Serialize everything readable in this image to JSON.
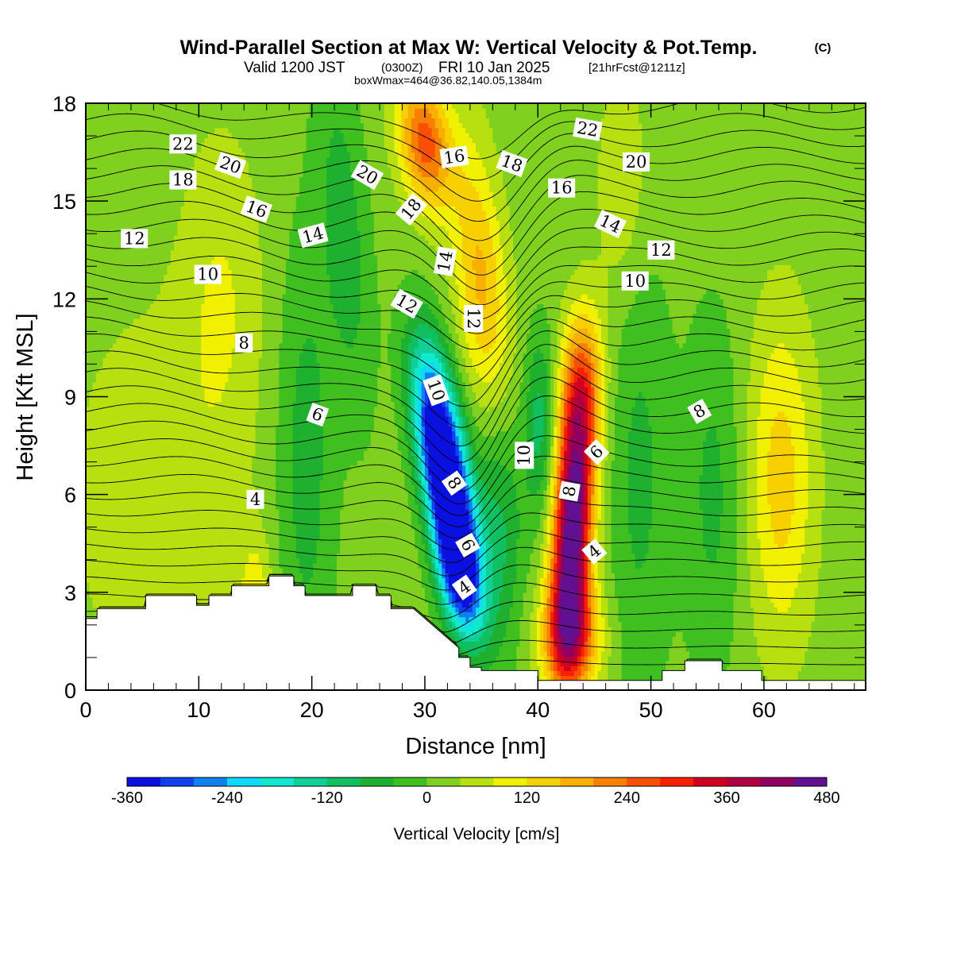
{
  "header": {
    "title": "Wind-Parallel Section at Max W: Vertical Velocity & Pot.Temp.",
    "title_mark": "(C)",
    "valid_prefix": "Valid 1200 JST",
    "valid_utc": "(0300Z)",
    "valid_date": "FRI 10 Jan 2025",
    "forecast_info": "[21hrFcst@1211z]",
    "box_info": "boxWmax=464@36.82,140.05,1384m"
  },
  "colorbar": {
    "title": "Vertical Velocity [cm/s]",
    "tick_labels": [
      "-360",
      "-240",
      "-120",
      "0",
      "120",
      "240",
      "360",
      "480"
    ],
    "levels": [
      -360,
      -320,
      -280,
      -240,
      -200,
      -160,
      -120,
      -80,
      -40,
      0,
      40,
      80,
      120,
      160,
      200,
      240,
      280,
      320,
      360,
      400,
      440,
      480
    ],
    "colors": [
      "#0a10e0",
      "#1040f0",
      "#1080f0",
      "#10d8f8",
      "#10e8d0",
      "#10d098",
      "#10c060",
      "#20b030",
      "#40c020",
      "#80d020",
      "#b8e010",
      "#f0f000",
      "#f8d000",
      "#f8b000",
      "#f88000",
      "#f85000",
      "#f82000",
      "#d00020",
      "#b00040",
      "#900060",
      "#601090"
    ]
  },
  "chart_data": {
    "type": "heatmap",
    "xlabel": "Distance [nm]",
    "ylabel": "Height [Kft MSL]",
    "xlim": [
      0,
      69
    ],
    "ylim": [
      0,
      18
    ],
    "x_ticks": [
      0,
      10,
      20,
      30,
      40,
      50,
      60
    ],
    "y_ticks": [
      0,
      3,
      6,
      9,
      12,
      15,
      18
    ],
    "field": "Vertical Velocity [cm/s]",
    "background_value": 20,
    "features": [
      {
        "x": 32.3,
        "y": 5.6,
        "sx": 1.4,
        "sy": 2.2,
        "value": -400,
        "tilt": -0.45
      },
      {
        "x": 31.0,
        "y": 8.4,
        "sx": 1.5,
        "sy": 2.0,
        "value": -240,
        "tilt": -0.4
      },
      {
        "x": 33.0,
        "y": 3.5,
        "sx": 1.3,
        "sy": 1.3,
        "value": -220,
        "tilt": -0.3
      },
      {
        "x": 43.0,
        "y": 4.6,
        "sx": 1.2,
        "sy": 2.6,
        "value": 470,
        "tilt": 0.12
      },
      {
        "x": 43.8,
        "y": 9.0,
        "sx": 1.3,
        "sy": 1.8,
        "value": 240,
        "tilt": 0.1
      },
      {
        "x": 43.0,
        "y": 1.6,
        "sx": 1.8,
        "sy": 1.2,
        "value": 220,
        "tilt": 0.0
      },
      {
        "x": 35.0,
        "y": 12.5,
        "sx": 1.6,
        "sy": 3.0,
        "value": 150,
        "tilt": -0.25
      },
      {
        "x": 30.0,
        "y": 16.8,
        "sx": 1.6,
        "sy": 1.4,
        "value": 240,
        "tilt": -0.3
      },
      {
        "x": 61.5,
        "y": 6.5,
        "sx": 2.0,
        "sy": 3.5,
        "value": 120,
        "tilt": 0.0
      },
      {
        "x": 40.2,
        "y": 8.2,
        "sx": 1.0,
        "sy": 2.0,
        "value": -120,
        "tilt": 0.0
      },
      {
        "x": 36.5,
        "y": 5.0,
        "sx": 1.6,
        "sy": 2.8,
        "value": -110,
        "tilt": 0.0
      },
      {
        "x": 19.5,
        "y": 7.0,
        "sx": 1.8,
        "sy": 5.0,
        "value": -80,
        "tilt": 0.0
      },
      {
        "x": 23.0,
        "y": 14.0,
        "sx": 1.5,
        "sy": 4.0,
        "value": -80,
        "tilt": -0.2
      },
      {
        "x": 49.0,
        "y": 6.5,
        "sx": 2.0,
        "sy": 5.0,
        "value": -70,
        "tilt": 0.0
      },
      {
        "x": 55.5,
        "y": 6.0,
        "sx": 1.8,
        "sy": 4.0,
        "value": -70,
        "tilt": 0.0
      },
      {
        "x": 6.0,
        "y": 6.0,
        "sx": 5.0,
        "sy": 4.0,
        "value": 50,
        "tilt": 0.0
      },
      {
        "x": 12.0,
        "y": 12.0,
        "sx": 2.5,
        "sy": 3.5,
        "value": 60,
        "tilt": 0.0
      },
      {
        "x": 15.0,
        "y": 2.5,
        "sx": 1.0,
        "sy": 1.5,
        "value": 100,
        "tilt": 0.0
      },
      {
        "x": 47.5,
        "y": 15.5,
        "sx": 1.5,
        "sy": 2.5,
        "value": 60,
        "tilt": 0.0
      }
    ],
    "terrain": {
      "x": [
        0,
        1,
        1,
        5.3,
        5.3,
        9.8,
        9.8,
        10.9,
        10.9,
        12.9,
        12.9,
        16.2,
        16.2,
        18.4,
        18.4,
        19.4,
        19.4,
        23.6,
        23.6,
        25.7,
        25.7,
        27.0,
        27.0,
        29.0,
        30.0,
        33.0,
        33.0,
        34.0,
        34.0,
        35.0,
        35.0,
        40.0,
        40.0,
        49.0,
        49.0,
        51.0,
        51.0,
        53.0,
        53.0,
        56.3,
        56.3,
        59.8,
        59.8,
        69
      ],
      "height": [
        2.2,
        2.2,
        2.5,
        2.5,
        2.9,
        2.9,
        2.6,
        2.6,
        2.9,
        2.9,
        3.2,
        3.2,
        3.5,
        3.5,
        3.2,
        3.2,
        2.9,
        2.9,
        3.2,
        3.2,
        2.9,
        2.9,
        2.5,
        2.5,
        2.2,
        1.3,
        1.0,
        1.0,
        0.7,
        0.7,
        0.6,
        0.6,
        0.3,
        0.3,
        0.3,
        0.3,
        0.6,
        0.6,
        0.9,
        0.9,
        0.6,
        0.6,
        0.3,
        0.3
      ]
    },
    "contour_labels": [
      {
        "text": "22",
        "x": 8.6,
        "y": 16.75,
        "angle": 0
      },
      {
        "text": "18",
        "x": 8.6,
        "y": 15.65,
        "angle": 0
      },
      {
        "text": "20",
        "x": 12.8,
        "y": 16.1,
        "angle": 20
      },
      {
        "text": "16",
        "x": 15.1,
        "y": 14.75,
        "angle": 20
      },
      {
        "text": "12",
        "x": 4.3,
        "y": 13.85,
        "angle": 0
      },
      {
        "text": "14",
        "x": 20.1,
        "y": 13.95,
        "angle": -15
      },
      {
        "text": "10",
        "x": 10.8,
        "y": 12.75,
        "angle": 0
      },
      {
        "text": "20",
        "x": 24.9,
        "y": 15.8,
        "angle": 30
      },
      {
        "text": "18",
        "x": 28.8,
        "y": 14.75,
        "angle": -50
      },
      {
        "text": "16",
        "x": 32.6,
        "y": 16.35,
        "angle": -8
      },
      {
        "text": "18",
        "x": 37.7,
        "y": 16.15,
        "angle": 20
      },
      {
        "text": "14",
        "x": 31.8,
        "y": 13.15,
        "angle": -80
      },
      {
        "text": "12",
        "x": 28.4,
        "y": 11.85,
        "angle": 30
      },
      {
        "text": "12",
        "x": 34.3,
        "y": 11.4,
        "angle": 90
      },
      {
        "text": "10",
        "x": 31.0,
        "y": 9.2,
        "angle": 70
      },
      {
        "text": "10",
        "x": 38.8,
        "y": 7.2,
        "angle": -90
      },
      {
        "text": "8",
        "x": 32.6,
        "y": 6.35,
        "angle": 55
      },
      {
        "text": "6",
        "x": 33.8,
        "y": 4.45,
        "angle": 60
      },
      {
        "text": "4",
        "x": 33.5,
        "y": 3.15,
        "angle": -35
      },
      {
        "text": "22",
        "x": 44.4,
        "y": 17.2,
        "angle": 10
      },
      {
        "text": "20",
        "x": 48.7,
        "y": 16.2,
        "angle": 0
      },
      {
        "text": "16",
        "x": 42.1,
        "y": 15.4,
        "angle": 0
      },
      {
        "text": "14",
        "x": 46.4,
        "y": 14.3,
        "angle": 25
      },
      {
        "text": "12",
        "x": 50.9,
        "y": 13.5,
        "angle": 0
      },
      {
        "text": "10",
        "x": 48.6,
        "y": 12.55,
        "angle": 0
      },
      {
        "text": "8",
        "x": 54.3,
        "y": 8.55,
        "angle": -30
      },
      {
        "text": "6",
        "x": 45.2,
        "y": 7.3,
        "angle": -45
      },
      {
        "text": "8",
        "x": 42.8,
        "y": 6.1,
        "angle": -80
      },
      {
        "text": "4",
        "x": 45.0,
        "y": 4.25,
        "angle": -40
      },
      {
        "text": "4",
        "x": 15.0,
        "y": 5.85,
        "angle": 0
      },
      {
        "text": "6",
        "x": 20.5,
        "y": 8.45,
        "angle": 20
      },
      {
        "text": "8",
        "x": 14.0,
        "y": 10.65,
        "angle": 0
      }
    ]
  }
}
